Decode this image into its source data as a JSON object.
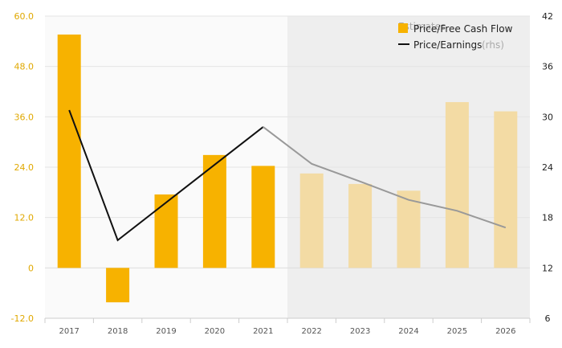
{
  "chart_data": {
    "type": "bar",
    "categories": [
      "2017",
      "2018",
      "2019",
      "2020",
      "2021",
      "2022",
      "2023",
      "2024",
      "2025",
      "2026"
    ],
    "estimates_from": "2022",
    "estimates_label": "Estimates",
    "series": [
      {
        "name": "Price/Free Cash Flow",
        "type": "bar",
        "axis": "left",
        "values": [
          55.6,
          -8.2,
          17.5,
          26.9,
          24.3,
          22.5,
          20.0,
          18.4,
          39.5,
          37.3
        ],
        "color": "#f7b200",
        "estimate_color": "#f3dba4"
      },
      {
        "name": "Price/Earnings",
        "name_suffix": "(rhs)",
        "type": "line",
        "axis": "right",
        "values": [
          30.8,
          15.3,
          null,
          null,
          28.8,
          24.4,
          22.3,
          20.1,
          18.8,
          16.8
        ],
        "color": "#111111",
        "estimate_color": "#999999"
      }
    ],
    "y_left": {
      "range": [
        -12,
        60
      ],
      "ticks": [
        "-12.0",
        "0",
        "12.0",
        "24.0",
        "36.0",
        "48.0",
        "60.0"
      ]
    },
    "y_right": {
      "range": [
        6,
        42
      ],
      "ticks": [
        "6",
        "12",
        "18",
        "24",
        "30",
        "36",
        "42"
      ]
    },
    "grid": true,
    "legend": "top-right"
  }
}
